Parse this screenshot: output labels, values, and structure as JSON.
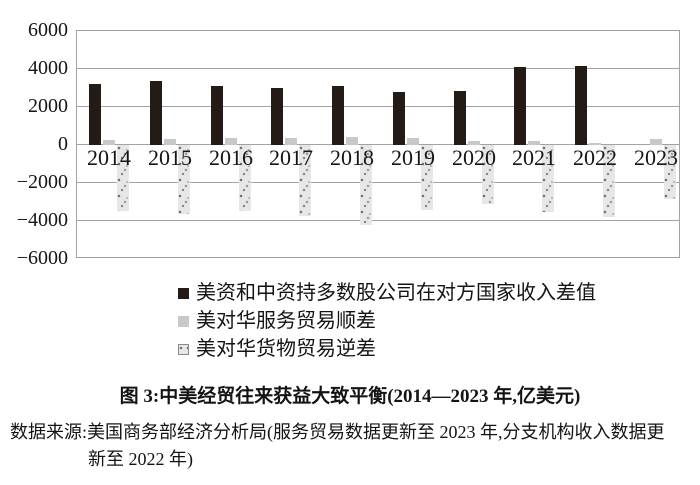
{
  "figure": {
    "caption": "图 3:中美经贸往来获益大致平衡(2014—2023 年,亿美元)",
    "source_line1": "数据来源:美国商务部经济分析局(服务贸易数据更新至 2023 年,分支机构收入数据更",
    "source_line2": "新至 2022 年)"
  },
  "chart_data": {
    "type": "bar",
    "title": "图 3:中美经贸往来获益大致平衡(2014—2023 年,亿美元)",
    "unit": "亿美元",
    "categories": [
      "2014",
      "2015",
      "2016",
      "2017",
      "2018",
      "2019",
      "2020",
      "2021",
      "2022",
      "2023"
    ],
    "series": [
      {
        "key": "income-gap",
        "name": "美资和中资持多数股公司在对方国家收入差值",
        "color": "#241b16",
        "pattern": false,
        "values": [
          3200,
          3350,
          3100,
          2980,
          3100,
          2800,
          2820,
          4100,
          4180,
          null
        ]
      },
      {
        "key": "services-surplus",
        "name": "美对华服务贸易顺差",
        "color": "#c8c8c8",
        "pattern": false,
        "values": [
          280,
          300,
          360,
          390,
          400,
          380,
          230,
          200,
          130,
          300
        ]
      },
      {
        "key": "goods-deficit",
        "name": "美对华货物贸易逆差",
        "color": "#e7e7e7",
        "pattern": true,
        "values": [
          -3450,
          -3650,
          -3450,
          -3750,
          -4200,
          -3400,
          -3100,
          -3550,
          -3800,
          -2850
        ]
      }
    ],
    "y_ticks": [
      6000,
      4000,
      2000,
      0,
      -2000,
      -4000,
      -6000
    ],
    "y_tick_labels": [
      "6000",
      "4000",
      "2000",
      "0",
      "−2000",
      "−4000",
      "−6000"
    ],
    "ylim": [
      -6000,
      6000
    ],
    "grid": true,
    "grid_color": "#a3a3a3",
    "legend_position": "below-left"
  }
}
